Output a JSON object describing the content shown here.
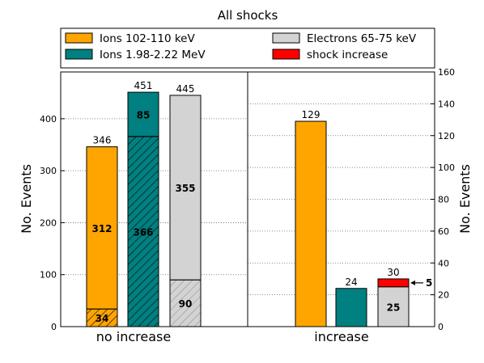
{
  "chart_data": {
    "type": "bar",
    "title": "All shocks",
    "categories": [
      "no increase",
      "increase"
    ],
    "ylabel_left": "No. Events",
    "ylabel_right": "No. Events",
    "ylim_left": [
      0,
      490
    ],
    "yticks_left": [
      0,
      100,
      200,
      300,
      400
    ],
    "ylim_right": [
      0,
      160
    ],
    "yticks_right": [
      0,
      20,
      40,
      60,
      80,
      100,
      120,
      140,
      160
    ],
    "grid": "horizontal dotted",
    "legend_position": "top",
    "legend": [
      {
        "key": "ions_low",
        "label": "Ions 102-110 keV",
        "color": "#FFA500"
      },
      {
        "key": "electrons",
        "label": "Electrons 65-75 keV",
        "color": "#D3D3D3"
      },
      {
        "key": "ions_high",
        "label": "Ions 1.98-2.22 MeV",
        "color": "#008080"
      },
      {
        "key": "shock",
        "label": "shock increase",
        "color": "#FF0000"
      }
    ],
    "groups": [
      {
        "category": "no increase",
        "axis": "left",
        "bars": [
          {
            "series": "Ions 102-110 keV",
            "color": "#FFA500",
            "total": 346,
            "segments": [
              {
                "value": 34,
                "hatched": true
              },
              {
                "value": 312,
                "hatched": false
              }
            ]
          },
          {
            "series": "Ions 1.98-2.22 MeV",
            "color": "#008080",
            "total": 451,
            "segments": [
              {
                "value": 366,
                "hatched": true
              },
              {
                "value": 85,
                "hatched": false
              }
            ]
          },
          {
            "series": "Electrons 65-75 keV",
            "color": "#D3D3D3",
            "total": 445,
            "segments": [
              {
                "value": 90,
                "hatched": true
              },
              {
                "value": 355,
                "hatched": false
              }
            ]
          }
        ]
      },
      {
        "category": "increase",
        "axis": "right",
        "bars": [
          {
            "series": "Ions 102-110 keV",
            "color": "#FFA500",
            "total": 129,
            "show_segment_labels": false,
            "segments": [
              {
                "value": 129,
                "hatched": false
              }
            ]
          },
          {
            "series": "Ions 1.98-2.22 MeV",
            "color": "#008080",
            "total": 24,
            "show_segment_labels": false,
            "segments": [
              {
                "value": 24,
                "hatched": false
              }
            ]
          },
          {
            "series": "Electrons 65-75 keV",
            "color": "#D3D3D3",
            "total": 30,
            "show_segment_labels": true,
            "segments": [
              {
                "value": 25,
                "hatched": false
              },
              {
                "value": 5,
                "hatched": false,
                "color": "#FF0000",
                "annotation": "5"
              }
            ]
          }
        ]
      }
    ]
  }
}
